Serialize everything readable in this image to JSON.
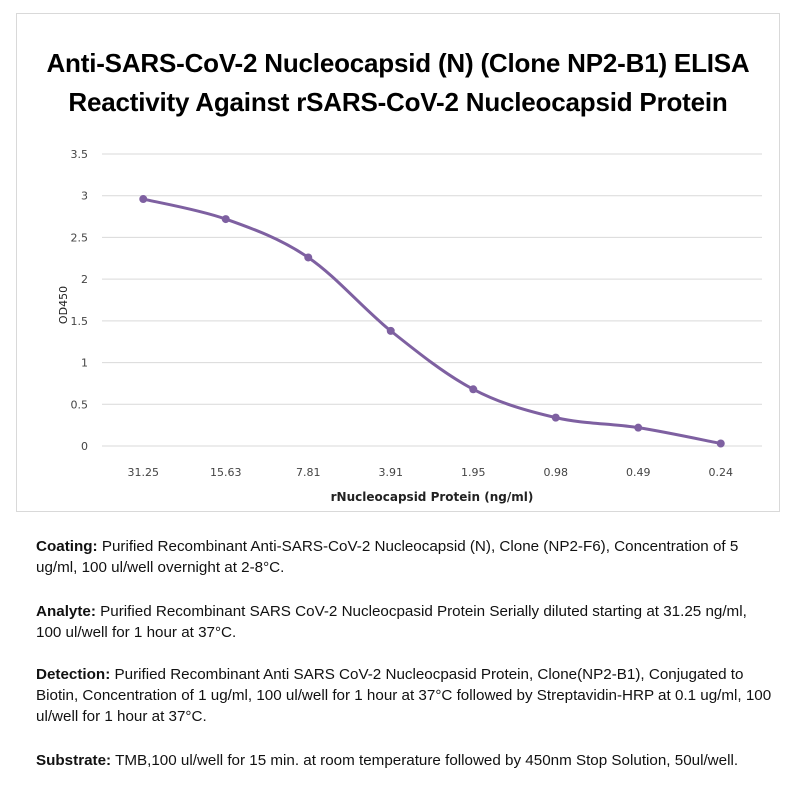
{
  "title_lines": [
    "Anti-SARS-CoV-2 Nucleocapsid (N) (Clone NP2-B1) ELISA",
    "Reactivity Against rSARS-CoV-2 Nucleocapsid Protein"
  ],
  "chart_data": {
    "type": "line",
    "title": "Anti-SARS-CoV-2 Nucleocapsid (N) (Clone NP2-B1) ELISA Reactivity Against rSARS-CoV-2 Nucleocapsid Protein",
    "xlabel": "rNucleocapsid Protein (ng/ml)",
    "ylabel": "OD450",
    "categories": [
      "31.25",
      "15.63",
      "7.81",
      "3.91",
      "1.95",
      "0.98",
      "0.49",
      "0.24"
    ],
    "series": [
      {
        "values": [
          2.96,
          2.72,
          2.26,
          1.38,
          0.68,
          0.34,
          0.22,
          0.03
        ]
      }
    ],
    "ylim": [
      0,
      3.5
    ],
    "yticks": [
      "0",
      "0.5",
      "1",
      "1.5",
      "2",
      "2.5",
      "3",
      "3.5"
    ],
    "grid": true,
    "smooth": true,
    "marker": "circle",
    "color": "#7e60a1",
    "legend": "none"
  },
  "notes": [
    {
      "label": "Coating:",
      "text": "Purified Recombinant Anti-SARS-CoV-2 Nucleocapsid (N), Clone (NP2-F6), Concentration of 5 ug/ml, 100 ul/well overnight at 2-8°C."
    },
    {
      "label": "Analyte:",
      "text": "Purified Recombinant SARS CoV-2 Nucleocpasid Protein Serially diluted starting at 31.25 ng/ml, 100 ul/well for 1 hour at 37°C."
    },
    {
      "label": "Detection:",
      "text": "Purified Recombinant Anti SARS CoV-2 Nucleocpasid Protein, Clone(NP2-B1), Conjugated to Biotin, Concentration of 1 ug/ml, 100 ul/well for 1 hour at 37°C followed by Streptavidin-HRP at 0.1 ug/ml, 100 ul/well for 1 hour at 37°C."
    },
    {
      "label": "Substrate:",
      "text": "TMB,100 ul/well for 15 min. at room temperature followed by 450nm Stop Solution, 50ul/well."
    }
  ]
}
